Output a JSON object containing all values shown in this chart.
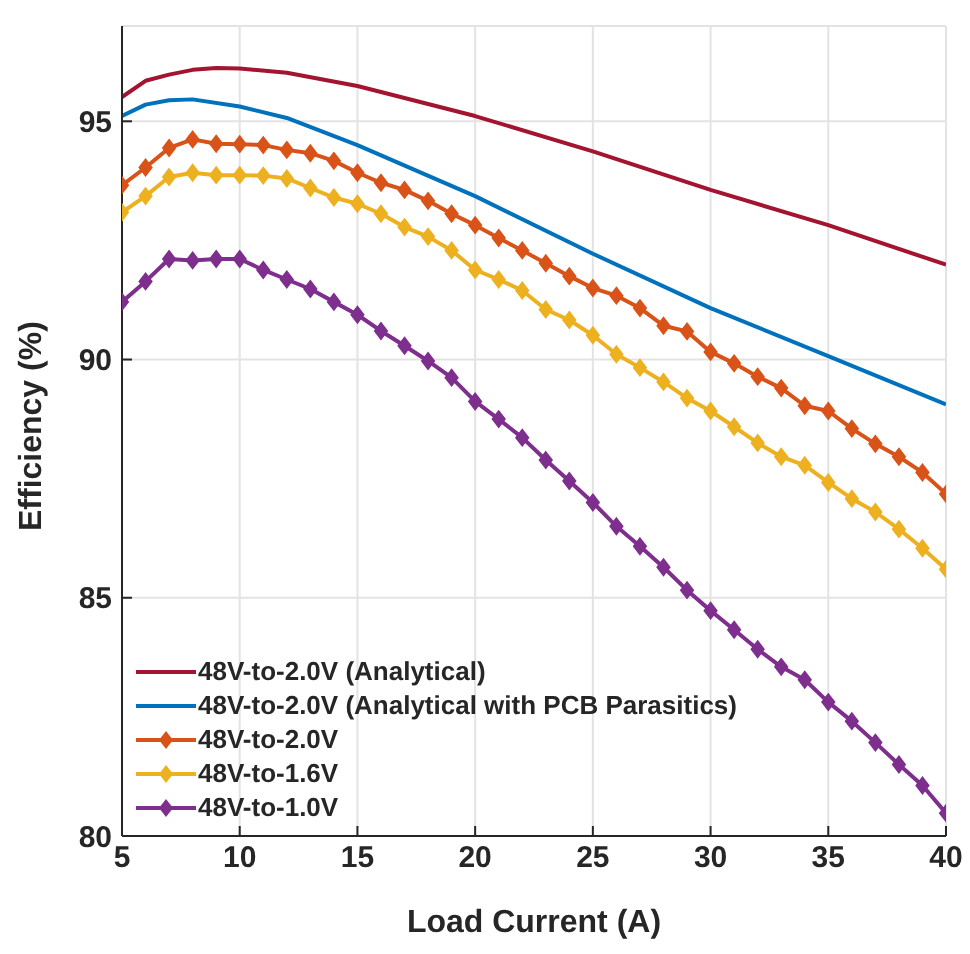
{
  "chart_data": {
    "type": "line",
    "xlabel": "Load Current (A)",
    "ylabel": "Efficiency (%)",
    "xlim": [
      5,
      40
    ],
    "xticks": [
      5,
      10,
      15,
      20,
      25,
      30,
      35,
      40
    ],
    "ylim": [
      80,
      97
    ],
    "yticks": [
      80,
      85,
      90,
      95
    ],
    "grid": true,
    "legend": "bottom left",
    "marker": "diamond",
    "line_style": "solid",
    "series": [
      {
        "name": "48V-to-2.0V (Analytical)",
        "color": "#a2142f",
        "marker": "none",
        "x": [
          5,
          6,
          7,
          8,
          9,
          10,
          12,
          15,
          20,
          25,
          30,
          35,
          40
        ],
        "values": [
          95.51,
          95.85,
          95.98,
          96.08,
          96.12,
          96.11,
          96.02,
          95.74,
          95.11,
          94.37,
          93.56,
          92.82,
          91.99
        ]
      },
      {
        "name": "48V-to-2.0V (Analytical with PCB Parasitics)",
        "color": "#0072bd",
        "marker": "none",
        "x": [
          5,
          6,
          7,
          8,
          10,
          12,
          15,
          20,
          25,
          30,
          35,
          40
        ],
        "values": [
          95.11,
          95.35,
          95.44,
          95.46,
          95.31,
          95.07,
          94.5,
          93.43,
          92.22,
          91.08,
          90.07,
          89.06
        ]
      },
      {
        "name": "48V-to-2.0V",
        "color": "#d95319",
        "x": [
          5,
          6,
          7,
          8,
          9,
          10,
          11,
          12,
          13,
          14,
          15,
          16,
          17,
          18,
          19,
          20,
          21,
          22,
          23,
          24,
          25,
          26,
          27,
          28,
          29,
          30,
          31,
          32,
          33,
          34,
          35,
          36,
          37,
          38,
          39,
          40
        ],
        "values": [
          93.66,
          94.03,
          94.44,
          94.62,
          94.53,
          94.52,
          94.5,
          94.4,
          94.33,
          94.17,
          93.92,
          93.71,
          93.56,
          93.33,
          93.06,
          92.82,
          92.55,
          92.29,
          92.02,
          91.75,
          91.5,
          91.34,
          91.08,
          90.71,
          90.59,
          90.16,
          89.92,
          89.64,
          89.4,
          89.03,
          88.92,
          88.55,
          88.23,
          87.96,
          87.63,
          87.18
        ]
      },
      {
        "name": "48V-to-1.6V",
        "color": "#edb120",
        "x": [
          5,
          6,
          7,
          8,
          9,
          10,
          11,
          12,
          13,
          14,
          15,
          16,
          17,
          18,
          19,
          20,
          21,
          22,
          23,
          24,
          25,
          26,
          27,
          28,
          29,
          30,
          31,
          32,
          33,
          34,
          35,
          36,
          37,
          38,
          39,
          40
        ],
        "values": [
          93.09,
          93.43,
          93.83,
          93.92,
          93.87,
          93.87,
          93.86,
          93.8,
          93.6,
          93.4,
          93.27,
          93.06,
          92.78,
          92.58,
          92.29,
          91.88,
          91.68,
          91.45,
          91.05,
          90.83,
          90.51,
          90.11,
          89.83,
          89.53,
          89.19,
          88.92,
          88.59,
          88.25,
          87.96,
          87.78,
          87.42,
          87.08,
          86.8,
          86.44,
          86.04,
          85.6
        ]
      },
      {
        "name": "48V-to-1.0V",
        "color": "#7e2f8e",
        "x": [
          5,
          6,
          7,
          8,
          9,
          10,
          11,
          12,
          13,
          14,
          15,
          16,
          17,
          18,
          19,
          20,
          21,
          22,
          23,
          24,
          25,
          26,
          27,
          28,
          29,
          30,
          31,
          32,
          33,
          34,
          35,
          36,
          37,
          38,
          39,
          40
        ],
        "values": [
          91.21,
          91.64,
          92.11,
          92.08,
          92.11,
          92.11,
          91.88,
          91.68,
          91.48,
          91.21,
          90.94,
          90.6,
          90.29,
          89.97,
          89.62,
          89.12,
          88.75,
          88.36,
          87.89,
          87.45,
          87.0,
          86.5,
          86.08,
          85.64,
          85.16,
          84.73,
          84.33,
          83.92,
          83.55,
          83.28,
          82.81,
          82.41,
          81.96,
          81.5,
          81.06,
          80.48
        ]
      }
    ]
  }
}
